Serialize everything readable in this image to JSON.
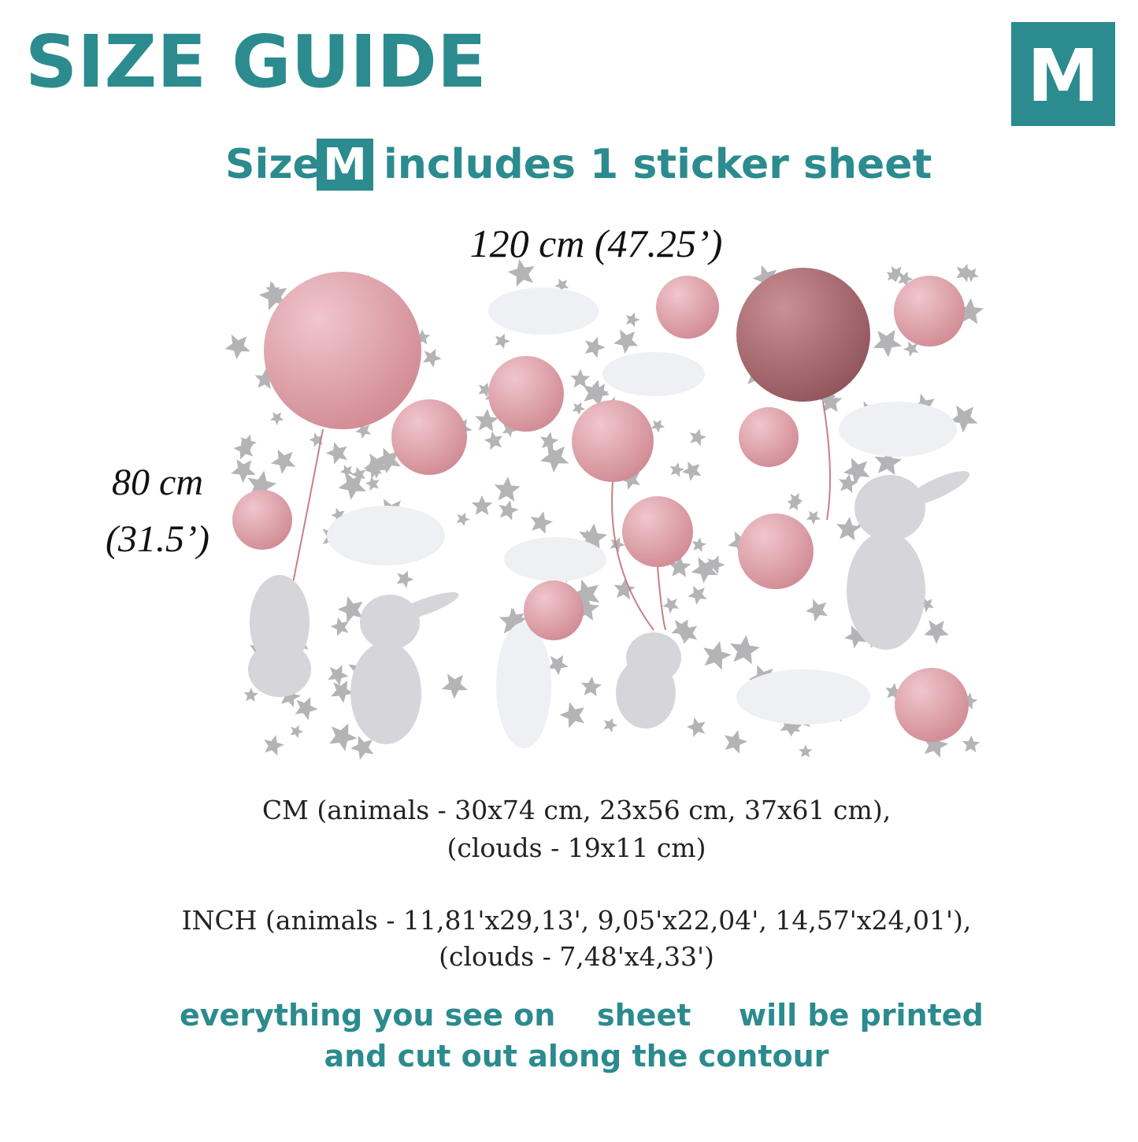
{
  "header": {
    "title": "SIZE GUIDE",
    "badge": "M"
  },
  "subtitle": {
    "before": "Size",
    "size": "M",
    "after": "includes 1 sticker sheet"
  },
  "dimensions": {
    "width": "120 cm (47.25’)",
    "height_cm": "80 cm",
    "height_in": "(31.5’)"
  },
  "cm_lines": [
    "CM (animals - 30x74 cm, 23x56 cm, 37x61 cm),",
    "(clouds - 19x11 cm)"
  ],
  "inch_lines": [
    "INCH (animals - 11,81'x29,13', 9,05'x22,04', 14,57'x24,01'),",
    "(clouds - 7,48'x4,33')"
  ],
  "footer": {
    "part1": "everything you see on",
    "part2": "sheet",
    "part3": "will be printed",
    "line2": "and cut out along the contour"
  }
}
